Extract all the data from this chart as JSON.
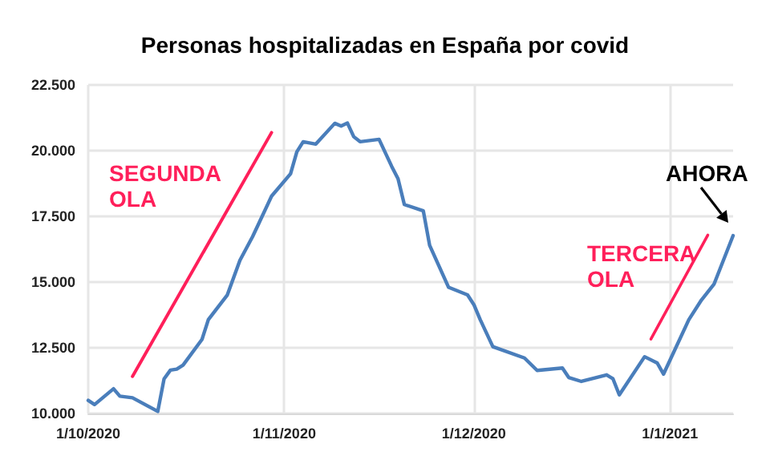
{
  "chart_data": {
    "type": "line",
    "title": "Personas hospitalizadas en España por covid",
    "xlim": [
      "2020-10-01",
      "2021-01-11"
    ],
    "xticks": [
      {
        "value": "2020-10-01",
        "label": "1/10/2020"
      },
      {
        "value": "2020-11-01",
        "label": "1/11/2020"
      },
      {
        "value": "2020-12-01",
        "label": "1/12/2020"
      },
      {
        "value": "2021-01-01",
        "label": "1/1/2021"
      }
    ],
    "ylim": [
      10000,
      22500
    ],
    "yticks": [
      {
        "value": 10000,
        "label": "10.000"
      },
      {
        "value": 12500,
        "label": "12.500"
      },
      {
        "value": 15000,
        "label": "15.000"
      },
      {
        "value": 17500,
        "label": "17.500"
      },
      {
        "value": 20000,
        "label": "20.000"
      },
      {
        "value": 22500,
        "label": "22.500"
      }
    ],
    "grid": true,
    "marker": "none",
    "line_style": "solid",
    "series": [
      {
        "color": "#4a7ebb",
        "x": [
          "2020-10-01",
          "2020-10-02",
          "2020-10-05",
          "2020-10-06",
          "2020-10-08",
          "2020-10-12",
          "2020-10-13",
          "2020-10-14",
          "2020-10-15",
          "2020-10-16",
          "2020-10-19",
          "2020-10-20",
          "2020-10-23",
          "2020-10-25",
          "2020-10-27",
          "2020-10-28",
          "2020-10-30",
          "2020-11-02",
          "2020-11-03",
          "2020-11-04",
          "2020-11-06",
          "2020-11-09",
          "2020-11-10",
          "2020-11-11",
          "2020-11-12",
          "2020-11-13",
          "2020-11-16",
          "2020-11-18",
          "2020-11-19",
          "2020-11-20",
          "2020-11-23",
          "2020-11-24",
          "2020-11-27",
          "2020-11-30",
          "2020-12-01",
          "2020-12-02",
          "2020-12-04",
          "2020-12-09",
          "2020-12-11",
          "2020-12-15",
          "2020-12-16",
          "2020-12-18",
          "2020-12-22",
          "2020-12-23",
          "2020-12-24",
          "2020-12-28",
          "2020-12-30",
          "2020-12-31",
          "2021-01-04",
          "2021-01-06",
          "2021-01-08",
          "2021-01-11"
        ],
        "values": [
          10500,
          10340,
          10940,
          10660,
          10600,
          10080,
          11320,
          11650,
          11690,
          11840,
          12820,
          13570,
          14510,
          15830,
          16730,
          17240,
          18270,
          19120,
          19960,
          20340,
          20250,
          21040,
          20940,
          21050,
          20530,
          20340,
          20430,
          19400,
          18930,
          17950,
          17710,
          16400,
          14800,
          14510,
          14140,
          13570,
          12540,
          12110,
          11640,
          11730,
          11370,
          11220,
          11470,
          11320,
          10710,
          12160,
          11920,
          11500,
          13570,
          14320,
          14930,
          16770
        ]
      },
      {
        "color": "#ff1f5a",
        "x": [
          "2020-10-08",
          "2020-10-30"
        ],
        "values": [
          11410,
          20690
        ]
      },
      {
        "color": "#ff1f5a",
        "x": [
          "2020-12-29",
          "2021-01-07"
        ],
        "values": [
          12830,
          16790
        ]
      }
    ],
    "annotations": [
      "SEGUNDA\nOLA",
      "TERCERA\nOLA",
      "AHORA"
    ]
  }
}
